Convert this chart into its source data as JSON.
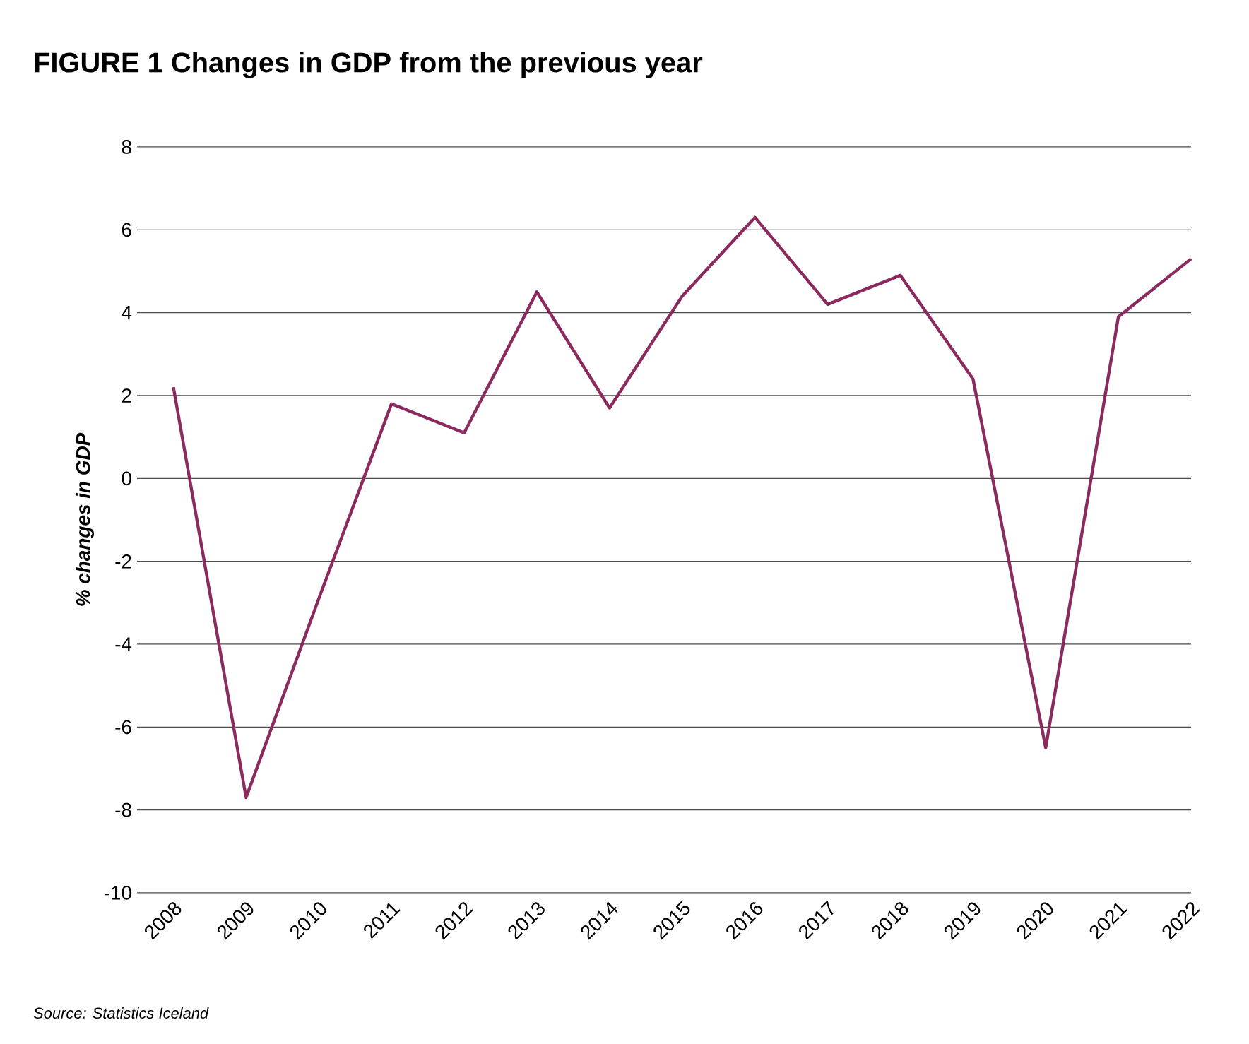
{
  "chart_data": {
    "type": "line",
    "title": "FIGURE 1 Changes in GDP from the previous year",
    "ylabel": "% changes in GDP",
    "categories": [
      "2008",
      "2009",
      "2010",
      "2011",
      "2012",
      "2013",
      "2014",
      "2015",
      "2016",
      "2017",
      "2018",
      "2019",
      "2020",
      "2021",
      "2022"
    ],
    "series": [
      {
        "color": "#8b2a5e",
        "values": [
          2.2,
          -7.7,
          -2.9,
          1.8,
          1.1,
          4.5,
          1.7,
          4.4,
          6.3,
          4.2,
          4.9,
          2.4,
          -6.5,
          3.9,
          5.3
        ]
      }
    ],
    "ylim": [
      -10,
      8
    ],
    "yticks": [
      -10,
      -8,
      -6,
      -4,
      -2,
      0,
      2,
      4,
      6,
      8
    ],
    "grid": "y",
    "marker": "none",
    "line_style": "solid",
    "annotations": [
      "Source: Statistics Iceland"
    ]
  }
}
